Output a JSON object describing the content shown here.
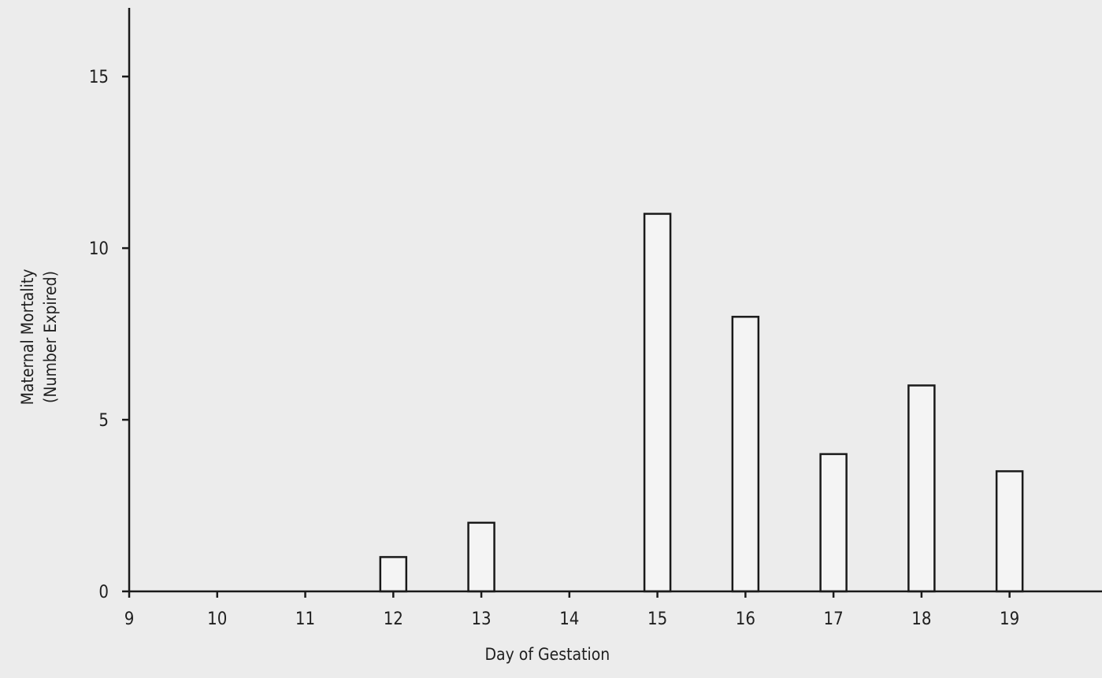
{
  "chart_data": {
    "type": "bar",
    "title": "",
    "xlabel": "Day of Gestation",
    "ylabel_lines": [
      "Maternal Mortality",
      "(Number Expired)"
    ],
    "categories": [
      9,
      10,
      11,
      12,
      13,
      14,
      15,
      16,
      17,
      18,
      19
    ],
    "values": [
      0,
      0,
      0,
      1,
      2,
      0,
      11,
      8,
      4,
      6,
      3.5
    ],
    "x_ticks": [
      9,
      10,
      11,
      12,
      13,
      14,
      15,
      16,
      17,
      18,
      19
    ],
    "y_ticks": [
      0,
      5,
      10,
      15
    ],
    "xlim": [
      9,
      20.05
    ],
    "ylim": [
      0,
      17
    ],
    "grid": false,
    "legend": false,
    "colors": {
      "background": "#ececec",
      "bar_fill": "#f4f4f4",
      "bar_stroke": "#1a1a1a",
      "axis": "#1a1a1a"
    }
  }
}
